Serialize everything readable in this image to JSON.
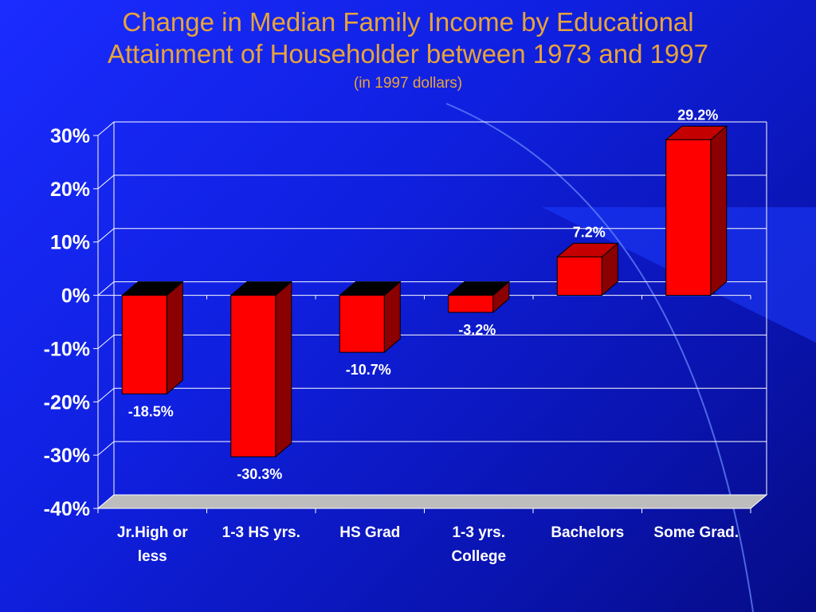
{
  "slide": {
    "title_line1": "Change in Median Family Income by Educational",
    "title_line2": "Attainment of Householder between 1973 and 1997",
    "subtitle": "(in 1997 dollars)"
  },
  "colors": {
    "bar_front": "#ff0000",
    "bar_side": "#8b0000",
    "bar_top": "#c40000",
    "title": "#e8a33a",
    "text": "#ffffff",
    "gridline": "#ffffff",
    "floor": "#bdbdbd"
  },
  "chart_data": {
    "type": "bar",
    "title": "Change in Median Family Income by Educational Attainment of Householder between 1973 and 1997",
    "subtitle": "(in 1997 dollars)",
    "categories": [
      "Jr.High or less",
      "1-3 HS yrs.",
      "HS Grad",
      "1-3 yrs. College",
      "Bachelors",
      "Some Grad."
    ],
    "category_lines": [
      [
        "Jr.High or",
        "less"
      ],
      [
        "1-3 HS yrs."
      ],
      [
        "HS Grad"
      ],
      [
        "1-3 yrs.",
        "College"
      ],
      [
        "Bachelors"
      ],
      [
        "Some Grad."
      ]
    ],
    "values": [
      -18.5,
      -30.3,
      -10.7,
      -3.2,
      7.2,
      29.2
    ],
    "data_labels": [
      "-18.5%",
      "-30.3%",
      "-10.7%",
      "-3.2%",
      "7.2%",
      "29.2%"
    ],
    "ylim": [
      -40,
      30
    ],
    "yticks": [
      30,
      20,
      10,
      0,
      -10,
      -20,
      -30,
      -40
    ],
    "ytick_labels": [
      "30%",
      "20%",
      "10%",
      "0%",
      "-10%",
      "-20%",
      "-30%",
      "-40%"
    ],
    "xlabel": "",
    "ylabel": "",
    "grid": true,
    "legend": "none",
    "style": "3d"
  }
}
